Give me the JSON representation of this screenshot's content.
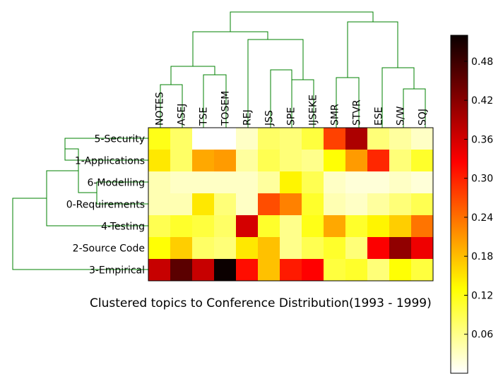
{
  "chart_data": {
    "type": "heatmap",
    "title": "Clustered topics to Conference Distribution(1993 - 1999)",
    "columns": [
      "NOTES",
      "ASEJ",
      "TSE",
      "TOSEM",
      "REJ",
      "JSS",
      "SPE",
      "IJSEKE",
      "SMR",
      "STVR",
      "ESE",
      "S/W",
      "SQJ"
    ],
    "rows": [
      "5-Security",
      "1-Applications",
      "6-Modelling",
      "0-Requirements",
      "4-Testing",
      "2-Source Code",
      "3-Empirical"
    ],
    "values": [
      [
        0.12,
        0.08,
        0.0,
        0.0,
        0.03,
        0.08,
        0.07,
        0.1,
        0.28,
        0.4,
        0.07,
        0.05,
        0.03
      ],
      [
        0.15,
        0.08,
        0.2,
        0.21,
        0.05,
        0.09,
        0.07,
        0.06,
        0.13,
        0.21,
        0.3,
        0.07,
        0.11
      ],
      [
        0.04,
        0.03,
        0.03,
        0.03,
        0.03,
        0.05,
        0.14,
        0.09,
        0.03,
        0.02,
        0.02,
        0.03,
        0.02
      ],
      [
        0.04,
        0.04,
        0.15,
        0.07,
        0.03,
        0.27,
        0.23,
        0.11,
        0.04,
        0.03,
        0.05,
        0.07,
        0.09
      ],
      [
        0.09,
        0.11,
        0.1,
        0.08,
        0.37,
        0.11,
        0.06,
        0.12,
        0.2,
        0.11,
        0.14,
        0.17,
        0.24
      ],
      [
        0.13,
        0.17,
        0.08,
        0.07,
        0.15,
        0.18,
        0.06,
        0.09,
        0.11,
        0.07,
        0.34,
        0.42,
        0.35
      ],
      [
        0.38,
        0.46,
        0.38,
        0.52,
        0.32,
        0.18,
        0.31,
        0.33,
        0.1,
        0.11,
        0.07,
        0.13,
        0.1
      ]
    ],
    "colorbar": {
      "colormap": "hot_r",
      "range": [
        0.0,
        0.52
      ],
      "ticks": [
        0.06,
        0.12,
        0.18,
        0.24,
        0.3,
        0.36,
        0.42,
        0.48
      ],
      "tick_labels": [
        "0.06",
        "0.12",
        "0.18",
        "0.24",
        "0.30",
        "0.36",
        "0.42",
        "0.48"
      ]
    },
    "dendrogram_color": "#008000"
  }
}
